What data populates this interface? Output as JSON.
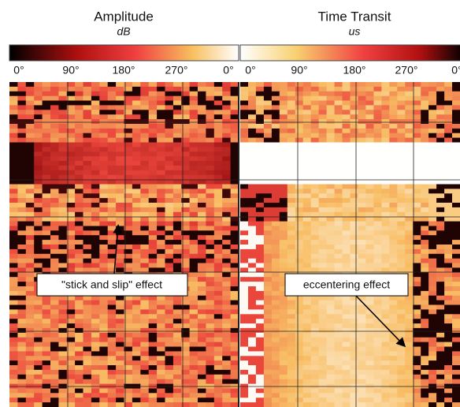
{
  "panels": [
    {
      "title": "Amplitude",
      "unit": "dB",
      "ticks": [
        "0°",
        "90°",
        "180°",
        "270°",
        "0°"
      ]
    },
    {
      "title": "Time Transit",
      "unit": "us",
      "ticks": [
        "0°",
        "90°",
        "180°",
        "270°",
        "0°"
      ]
    }
  ],
  "annotations": [
    "\"stick and slip\" effect",
    "eccentering effect"
  ]
}
